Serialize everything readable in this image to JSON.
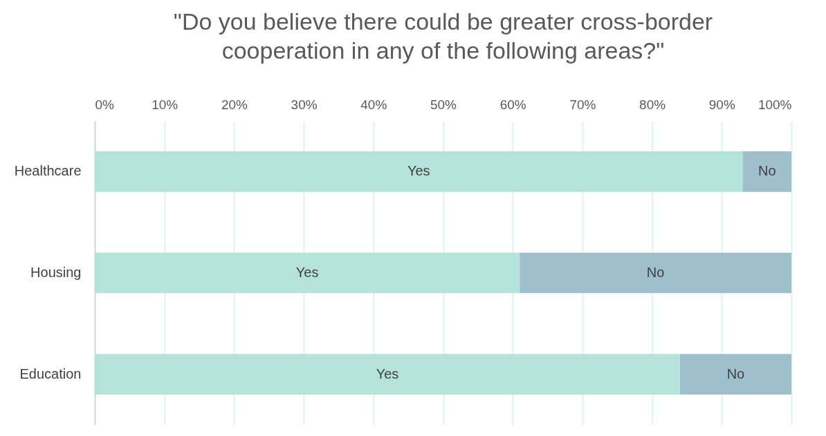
{
  "chart_data": {
    "type": "bar",
    "orientation": "horizontal",
    "stacked": true,
    "title": "\"Do you believe there could be greater cross-border cooperation in any of the following areas?\"",
    "categories": [
      "Healthcare",
      "Housing",
      "Education"
    ],
    "series": [
      {
        "name": "Yes",
        "color": "#b5e3da",
        "values": [
          93,
          61,
          84
        ]
      },
      {
        "name": "No",
        "color": "#9fbfcd",
        "values": [
          7,
          39,
          16
        ]
      }
    ],
    "xlim": [
      0,
      100
    ],
    "xticks": [
      {
        "value": 0,
        "label": "0%"
      },
      {
        "value": 10,
        "label": "10%"
      },
      {
        "value": 20,
        "label": "20%"
      },
      {
        "value": 30,
        "label": "30%"
      },
      {
        "value": 40,
        "label": "40%"
      },
      {
        "value": 50,
        "label": "50%"
      },
      {
        "value": 60,
        "label": "60%"
      },
      {
        "value": 70,
        "label": "70%"
      },
      {
        "value": 80,
        "label": "80%"
      },
      {
        "value": 90,
        "label": "90%"
      },
      {
        "value": 100,
        "label": "100%"
      }
    ],
    "grid": "x",
    "legend": false
  }
}
